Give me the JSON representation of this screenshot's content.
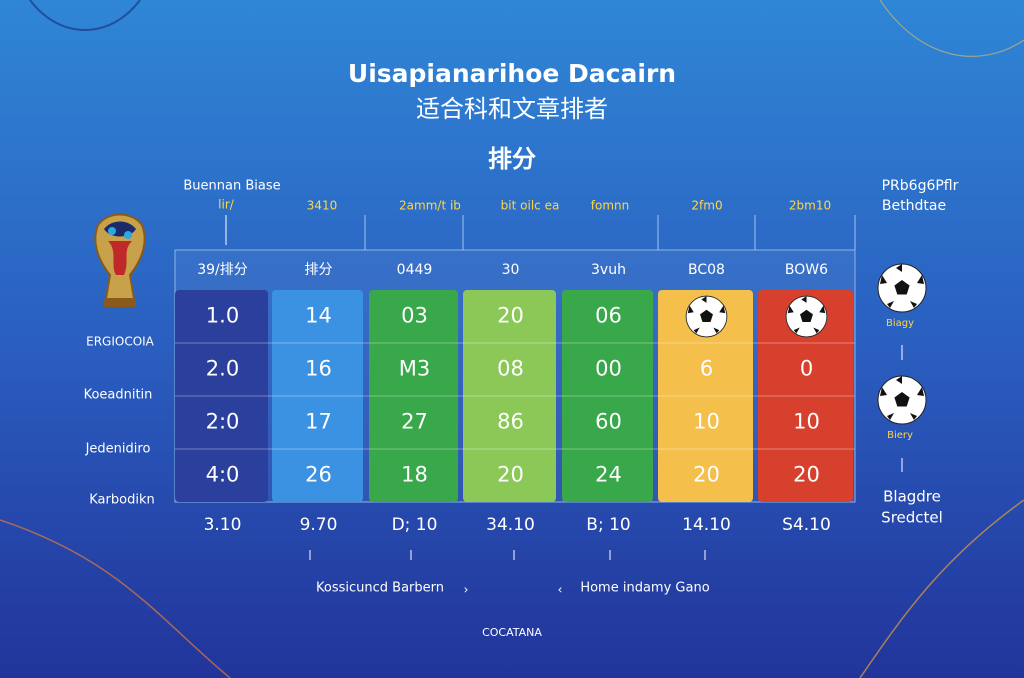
{
  "header": {
    "title": "Uisapianarihoe Dacairn",
    "title_cn": "适合科和文章排者",
    "subtitle": "排分"
  },
  "top_left": [
    "Buennan Biase",
    "lir/"
  ],
  "top_labels": [
    "3410",
    "2amm/t ib",
    "bit oilc ea",
    "fomnn",
    "2fm0",
    "2bm10"
  ],
  "top_right": [
    "PRb6g6Pflr",
    "Bethdtae"
  ],
  "table": {
    "columns": [
      "39/排分",
      "排分",
      "0449",
      "30",
      "3vuh",
      "BC08",
      "BOW6"
    ],
    "rows": [
      [
        "1.0",
        "14",
        "03",
        "20",
        "06",
        null,
        null
      ],
      [
        "2.0",
        "16",
        "M3",
        "08",
        "00",
        "6",
        "0"
      ],
      [
        "2:0",
        "17",
        "27",
        "86",
        "60",
        "10",
        "10"
      ],
      [
        "4:0",
        "26",
        "18",
        "20",
        "24",
        "20",
        "20"
      ]
    ],
    "footer": [
      "3.10",
      "9.70",
      "D; 10",
      "34.10",
      "B; 10",
      "14.10",
      "S4.10"
    ]
  },
  "logo_text": "ERGIOCOIA",
  "left_labels": [
    "Koeadnitin",
    "Jedenidiro",
    "Karbodikn"
  ],
  "right_labels": [
    "Biagy",
    "Biery",
    "Blagdre",
    "Sredctel"
  ],
  "bottom": {
    "left": "Kossicuncd Barbern",
    "right": "Home indamy Gano",
    "logo_text": "COCATANA"
  }
}
